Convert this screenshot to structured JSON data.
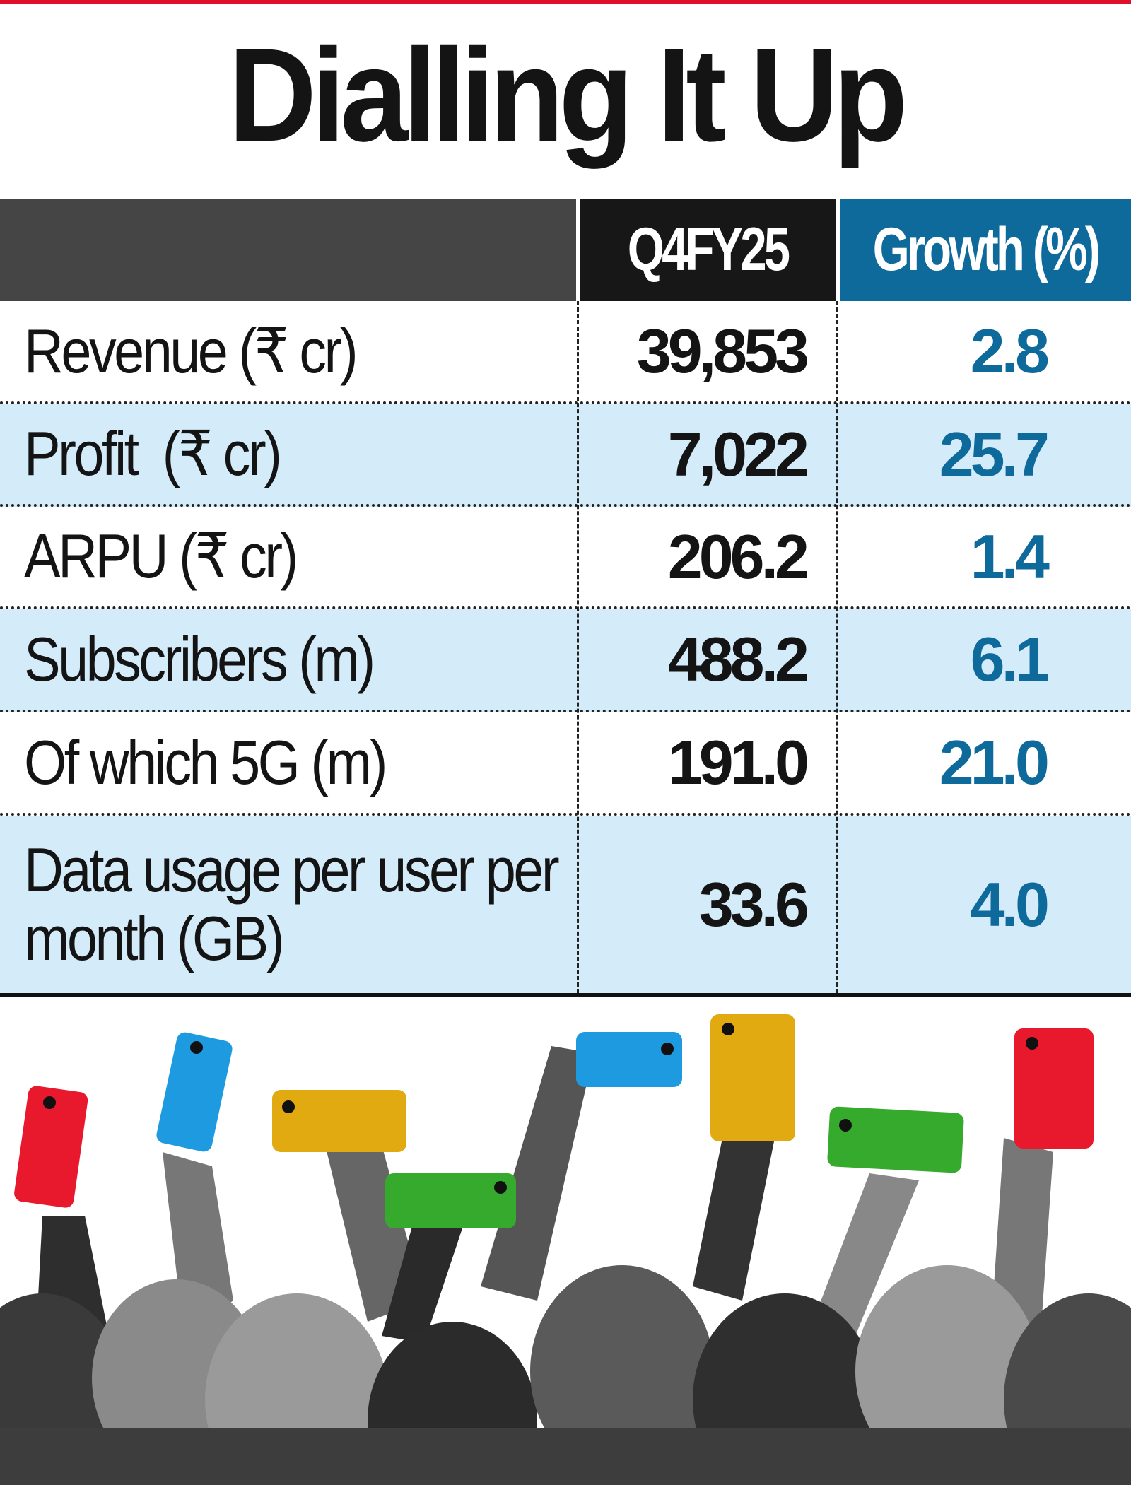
{
  "title": "Dialling It Up",
  "table": {
    "headers": [
      "",
      "Q4FY25",
      "Growth (%)"
    ],
    "rows": [
      {
        "label": "Revenue (₹ cr)",
        "value": "39,853",
        "growth": "2.8"
      },
      {
        "label": "Profit  (₹ cr)",
        "value": "7,022",
        "growth": "25.7"
      },
      {
        "label": "ARPU (₹ cr)",
        "value": "206.2",
        "growth": "1.4"
      },
      {
        "label": "Subscribers (m)",
        "value": "488.2",
        "growth": "6.1"
      },
      {
        "label": "Of which 5G (m)",
        "value": "191.0",
        "growth": "21.0"
      },
      {
        "label": "Data usage per user per month (GB)",
        "value": "33.6",
        "growth": "4.0"
      }
    ]
  },
  "colors": {
    "accent_red": "#e0102a",
    "growth_blue": "#0f6a9c",
    "row_tint": "#d4ebfa",
    "phones": [
      "#e8192c",
      "#1e9be0",
      "#e0aa10",
      "#36aa2c"
    ]
  }
}
